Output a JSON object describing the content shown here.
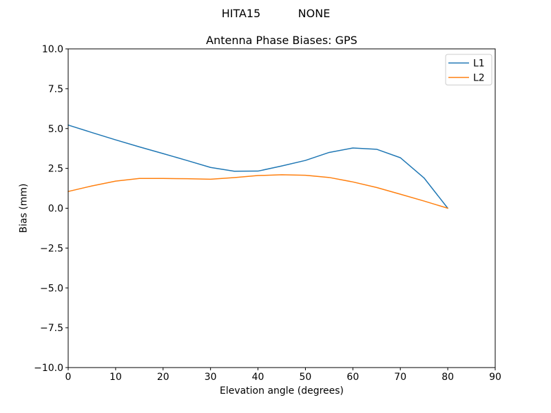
{
  "suptitle": {
    "part1": "HITA15",
    "part2": "NONE"
  },
  "chart_data": {
    "type": "line",
    "title": "Antenna Phase Biases: GPS",
    "xlabel": "Elevation angle (degrees)",
    "ylabel": "Bias (mm)",
    "xlim": [
      0,
      90
    ],
    "ylim": [
      -10,
      10
    ],
    "grid": false,
    "background": "#ffffff",
    "frame_color": "#000000",
    "xticks": {
      "values": [
        0,
        10,
        20,
        30,
        40,
        50,
        60,
        70,
        80,
        90
      ],
      "labels": [
        "0",
        "10",
        "20",
        "30",
        "40",
        "50",
        "60",
        "70",
        "80",
        "90"
      ]
    },
    "yticks": {
      "values": [
        -10,
        -7.5,
        -5,
        -2.5,
        0,
        2.5,
        5,
        7.5,
        10
      ],
      "labels": [
        "−10.0",
        "−7.5",
        "−5.0",
        "−2.5",
        "0.0",
        "2.5",
        "5.0",
        "7.5",
        "10.0"
      ]
    },
    "x": [
      0,
      5,
      10,
      15,
      20,
      25,
      30,
      35,
      40,
      45,
      50,
      55,
      60,
      65,
      70,
      75,
      80
    ],
    "series": [
      {
        "name": "L1",
        "color": "#1f77b4",
        "values": [
          5.22,
          4.75,
          4.29,
          3.85,
          3.43,
          3.0,
          2.56,
          2.32,
          2.33,
          2.65,
          3.0,
          3.5,
          3.78,
          3.7,
          3.17,
          1.9,
          0.0
        ]
      },
      {
        "name": "L2",
        "color": "#ff7f0e",
        "values": [
          1.05,
          1.4,
          1.7,
          1.87,
          1.87,
          1.85,
          1.82,
          1.92,
          2.05,
          2.1,
          2.07,
          1.93,
          1.65,
          1.3,
          0.88,
          0.45,
          0.0
        ]
      }
    ],
    "legend": {
      "position": "upper right",
      "entries": [
        "L1",
        "L2"
      ]
    }
  }
}
